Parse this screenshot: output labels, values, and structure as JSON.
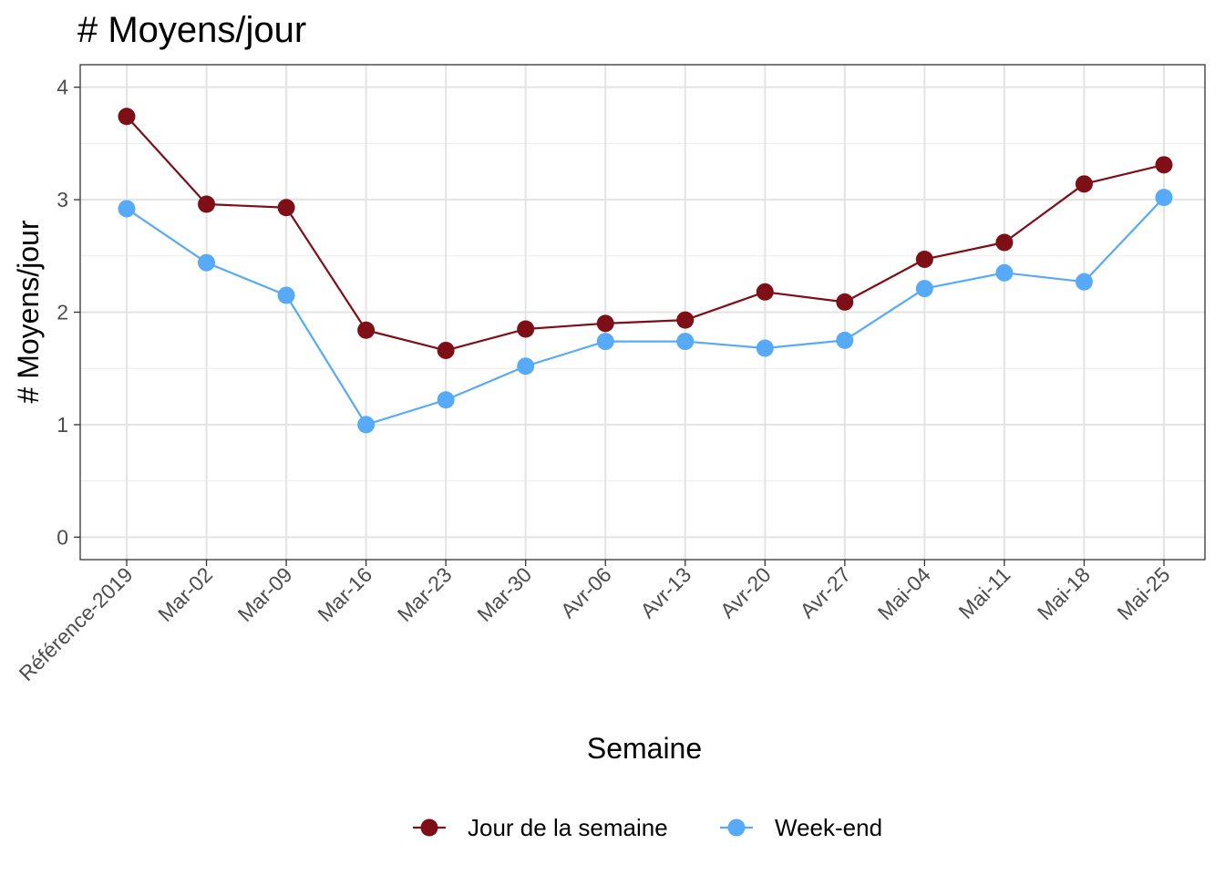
{
  "chart_data": {
    "type": "line",
    "title": "# Moyens/jour",
    "xlabel": "Semaine",
    "ylabel": "# Moyens/jour",
    "categories": [
      "Référence-2019",
      "Mar-02",
      "Mar-09",
      "Mar-16",
      "Mar-23",
      "Mar-30",
      "Avr-06",
      "Avr-13",
      "Avr-20",
      "Avr-27",
      "Mai-04",
      "Mai-11",
      "Mai-18",
      "Mai-25"
    ],
    "ylim": [
      -0.2,
      4.2
    ],
    "yticks": [
      0,
      1,
      2,
      3,
      4
    ],
    "grid": true,
    "legend_position": "bottom",
    "series": [
      {
        "name": "Jour de la semaine",
        "color": "#7F0F16",
        "values": [
          3.74,
          2.96,
          2.93,
          1.84,
          1.66,
          1.85,
          1.9,
          1.93,
          2.18,
          2.09,
          2.47,
          2.62,
          3.14,
          3.31
        ]
      },
      {
        "name": "Week-end",
        "color": "#56AAF7",
        "values": [
          2.92,
          2.44,
          2.15,
          1.0,
          1.22,
          1.52,
          1.74,
          1.74,
          1.68,
          1.75,
          2.21,
          2.35,
          2.27,
          3.02
        ]
      }
    ]
  }
}
